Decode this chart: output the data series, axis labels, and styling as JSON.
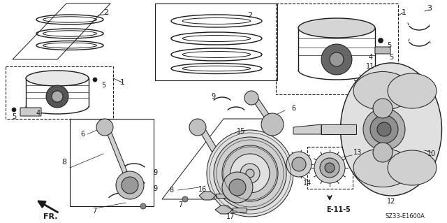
{
  "bg_color": "#ffffff",
  "line_color": "#1a1a1a",
  "part_number": "SZ33-E1600A",
  "fig_width": 6.4,
  "fig_height": 3.19,
  "dpi": 100
}
